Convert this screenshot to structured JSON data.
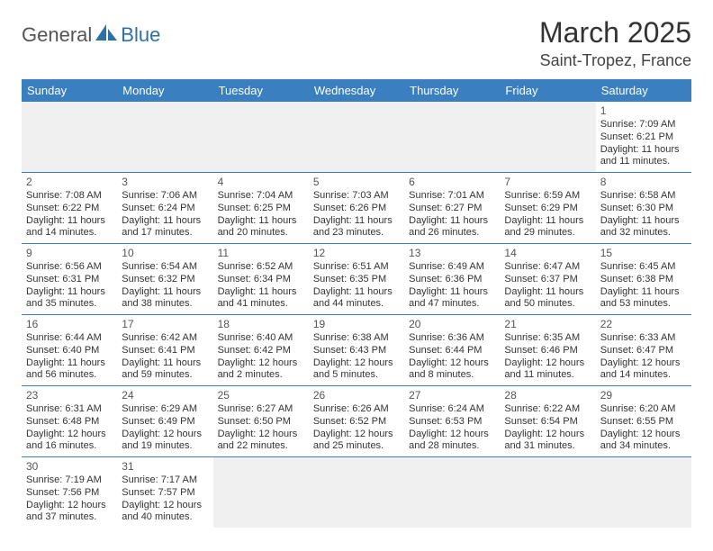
{
  "brand": {
    "part1": "General",
    "part2": "Blue",
    "logo_color": "#2f6fa8"
  },
  "title": "March 2025",
  "location": "Saint-Tropez, France",
  "colors": {
    "header_bg": "#3a7fbf",
    "header_fg": "#ffffff",
    "rule": "#3a7fbf",
    "blank_bg": "#f0f0f0"
  },
  "day_headers": [
    "Sunday",
    "Monday",
    "Tuesday",
    "Wednesday",
    "Thursday",
    "Friday",
    "Saturday"
  ],
  "weeks": [
    [
      {
        "blank": true
      },
      {
        "blank": true
      },
      {
        "blank": true
      },
      {
        "blank": true
      },
      {
        "blank": true
      },
      {
        "blank": true
      },
      {
        "n": "1",
        "sr": "Sunrise: 7:09 AM",
        "ss": "Sunset: 6:21 PM",
        "d1": "Daylight: 11 hours",
        "d2": "and 11 minutes."
      }
    ],
    [
      {
        "n": "2",
        "sr": "Sunrise: 7:08 AM",
        "ss": "Sunset: 6:22 PM",
        "d1": "Daylight: 11 hours",
        "d2": "and 14 minutes."
      },
      {
        "n": "3",
        "sr": "Sunrise: 7:06 AM",
        "ss": "Sunset: 6:24 PM",
        "d1": "Daylight: 11 hours",
        "d2": "and 17 minutes."
      },
      {
        "n": "4",
        "sr": "Sunrise: 7:04 AM",
        "ss": "Sunset: 6:25 PM",
        "d1": "Daylight: 11 hours",
        "d2": "and 20 minutes."
      },
      {
        "n": "5",
        "sr": "Sunrise: 7:03 AM",
        "ss": "Sunset: 6:26 PM",
        "d1": "Daylight: 11 hours",
        "d2": "and 23 minutes."
      },
      {
        "n": "6",
        "sr": "Sunrise: 7:01 AM",
        "ss": "Sunset: 6:27 PM",
        "d1": "Daylight: 11 hours",
        "d2": "and 26 minutes."
      },
      {
        "n": "7",
        "sr": "Sunrise: 6:59 AM",
        "ss": "Sunset: 6:29 PM",
        "d1": "Daylight: 11 hours",
        "d2": "and 29 minutes."
      },
      {
        "n": "8",
        "sr": "Sunrise: 6:58 AM",
        "ss": "Sunset: 6:30 PM",
        "d1": "Daylight: 11 hours",
        "d2": "and 32 minutes."
      }
    ],
    [
      {
        "n": "9",
        "sr": "Sunrise: 6:56 AM",
        "ss": "Sunset: 6:31 PM",
        "d1": "Daylight: 11 hours",
        "d2": "and 35 minutes."
      },
      {
        "n": "10",
        "sr": "Sunrise: 6:54 AM",
        "ss": "Sunset: 6:32 PM",
        "d1": "Daylight: 11 hours",
        "d2": "and 38 minutes."
      },
      {
        "n": "11",
        "sr": "Sunrise: 6:52 AM",
        "ss": "Sunset: 6:34 PM",
        "d1": "Daylight: 11 hours",
        "d2": "and 41 minutes."
      },
      {
        "n": "12",
        "sr": "Sunrise: 6:51 AM",
        "ss": "Sunset: 6:35 PM",
        "d1": "Daylight: 11 hours",
        "d2": "and 44 minutes."
      },
      {
        "n": "13",
        "sr": "Sunrise: 6:49 AM",
        "ss": "Sunset: 6:36 PM",
        "d1": "Daylight: 11 hours",
        "d2": "and 47 minutes."
      },
      {
        "n": "14",
        "sr": "Sunrise: 6:47 AM",
        "ss": "Sunset: 6:37 PM",
        "d1": "Daylight: 11 hours",
        "d2": "and 50 minutes."
      },
      {
        "n": "15",
        "sr": "Sunrise: 6:45 AM",
        "ss": "Sunset: 6:38 PM",
        "d1": "Daylight: 11 hours",
        "d2": "and 53 minutes."
      }
    ],
    [
      {
        "n": "16",
        "sr": "Sunrise: 6:44 AM",
        "ss": "Sunset: 6:40 PM",
        "d1": "Daylight: 11 hours",
        "d2": "and 56 minutes."
      },
      {
        "n": "17",
        "sr": "Sunrise: 6:42 AM",
        "ss": "Sunset: 6:41 PM",
        "d1": "Daylight: 11 hours",
        "d2": "and 59 minutes."
      },
      {
        "n": "18",
        "sr": "Sunrise: 6:40 AM",
        "ss": "Sunset: 6:42 PM",
        "d1": "Daylight: 12 hours",
        "d2": "and 2 minutes."
      },
      {
        "n": "19",
        "sr": "Sunrise: 6:38 AM",
        "ss": "Sunset: 6:43 PM",
        "d1": "Daylight: 12 hours",
        "d2": "and 5 minutes."
      },
      {
        "n": "20",
        "sr": "Sunrise: 6:36 AM",
        "ss": "Sunset: 6:44 PM",
        "d1": "Daylight: 12 hours",
        "d2": "and 8 minutes."
      },
      {
        "n": "21",
        "sr": "Sunrise: 6:35 AM",
        "ss": "Sunset: 6:46 PM",
        "d1": "Daylight: 12 hours",
        "d2": "and 11 minutes."
      },
      {
        "n": "22",
        "sr": "Sunrise: 6:33 AM",
        "ss": "Sunset: 6:47 PM",
        "d1": "Daylight: 12 hours",
        "d2": "and 14 minutes."
      }
    ],
    [
      {
        "n": "23",
        "sr": "Sunrise: 6:31 AM",
        "ss": "Sunset: 6:48 PM",
        "d1": "Daylight: 12 hours",
        "d2": "and 16 minutes."
      },
      {
        "n": "24",
        "sr": "Sunrise: 6:29 AM",
        "ss": "Sunset: 6:49 PM",
        "d1": "Daylight: 12 hours",
        "d2": "and 19 minutes."
      },
      {
        "n": "25",
        "sr": "Sunrise: 6:27 AM",
        "ss": "Sunset: 6:50 PM",
        "d1": "Daylight: 12 hours",
        "d2": "and 22 minutes."
      },
      {
        "n": "26",
        "sr": "Sunrise: 6:26 AM",
        "ss": "Sunset: 6:52 PM",
        "d1": "Daylight: 12 hours",
        "d2": "and 25 minutes."
      },
      {
        "n": "27",
        "sr": "Sunrise: 6:24 AM",
        "ss": "Sunset: 6:53 PM",
        "d1": "Daylight: 12 hours",
        "d2": "and 28 minutes."
      },
      {
        "n": "28",
        "sr": "Sunrise: 6:22 AM",
        "ss": "Sunset: 6:54 PM",
        "d1": "Daylight: 12 hours",
        "d2": "and 31 minutes."
      },
      {
        "n": "29",
        "sr": "Sunrise: 6:20 AM",
        "ss": "Sunset: 6:55 PM",
        "d1": "Daylight: 12 hours",
        "d2": "and 34 minutes."
      }
    ],
    [
      {
        "n": "30",
        "sr": "Sunrise: 7:19 AM",
        "ss": "Sunset: 7:56 PM",
        "d1": "Daylight: 12 hours",
        "d2": "and 37 minutes."
      },
      {
        "n": "31",
        "sr": "Sunrise: 7:17 AM",
        "ss": "Sunset: 7:57 PM",
        "d1": "Daylight: 12 hours",
        "d2": "and 40 minutes."
      },
      {
        "blank": true
      },
      {
        "blank": true
      },
      {
        "blank": true
      },
      {
        "blank": true
      },
      {
        "blank": true
      }
    ]
  ]
}
